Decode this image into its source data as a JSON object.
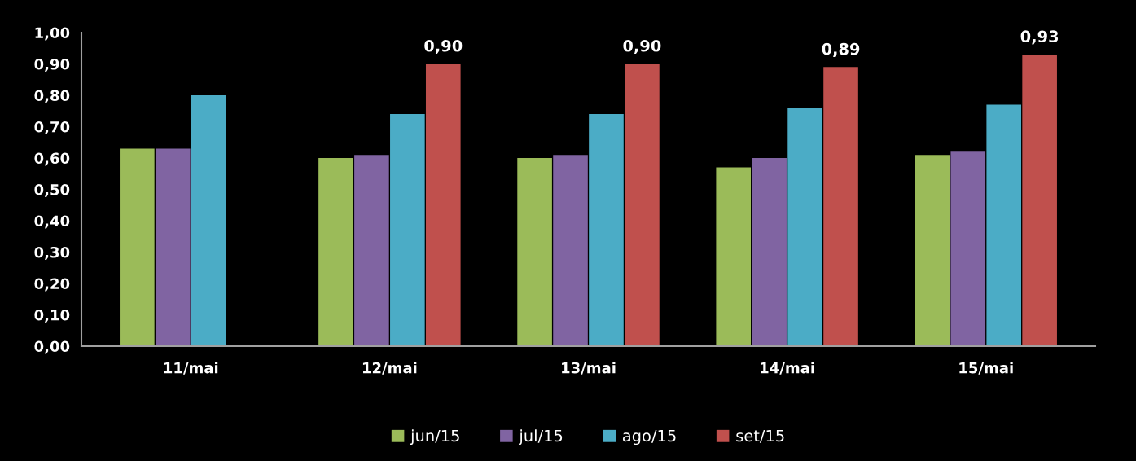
{
  "chart_data": {
    "type": "bar",
    "categories": [
      "11/mai",
      "12/mai",
      "13/mai",
      "14/mai",
      "15/mai"
    ],
    "series": [
      {
        "name": "jun/15",
        "color": "#9bbb59",
        "values": [
          0.63,
          0.6,
          0.6,
          0.57,
          0.61
        ]
      },
      {
        "name": "jul/15",
        "color": "#8064a2",
        "values": [
          0.63,
          0.61,
          0.61,
          0.6,
          0.62
        ]
      },
      {
        "name": "ago/15",
        "color": "#4bacc6",
        "values": [
          0.8,
          0.74,
          0.74,
          0.76,
          0.77
        ]
      },
      {
        "name": "set/15",
        "color": "#c0504d",
        "values": [
          null,
          0.9,
          0.9,
          0.89,
          0.93
        ],
        "value_labels": [
          null,
          "0,90",
          "0,90",
          "0,89",
          "0,93"
        ]
      }
    ],
    "ylim": [
      0,
      1.0
    ],
    "yticks": [
      {
        "value": 0,
        "label": "0,00"
      },
      {
        "value": 0.1,
        "label": "0,10"
      },
      {
        "value": 0.2,
        "label": "0,20"
      },
      {
        "value": 0.3,
        "label": "0,30"
      },
      {
        "value": 0.4,
        "label": "0,40"
      },
      {
        "value": 0.5,
        "label": "0,50"
      },
      {
        "value": 0.6,
        "label": "0,60"
      },
      {
        "value": 0.7,
        "label": "0,70"
      },
      {
        "value": 0.8,
        "label": "0,80"
      },
      {
        "value": 0.9,
        "label": "0,90"
      },
      {
        "value": 1.0,
        "label": "1,00"
      }
    ],
    "grid": false,
    "legend": "bottom"
  }
}
